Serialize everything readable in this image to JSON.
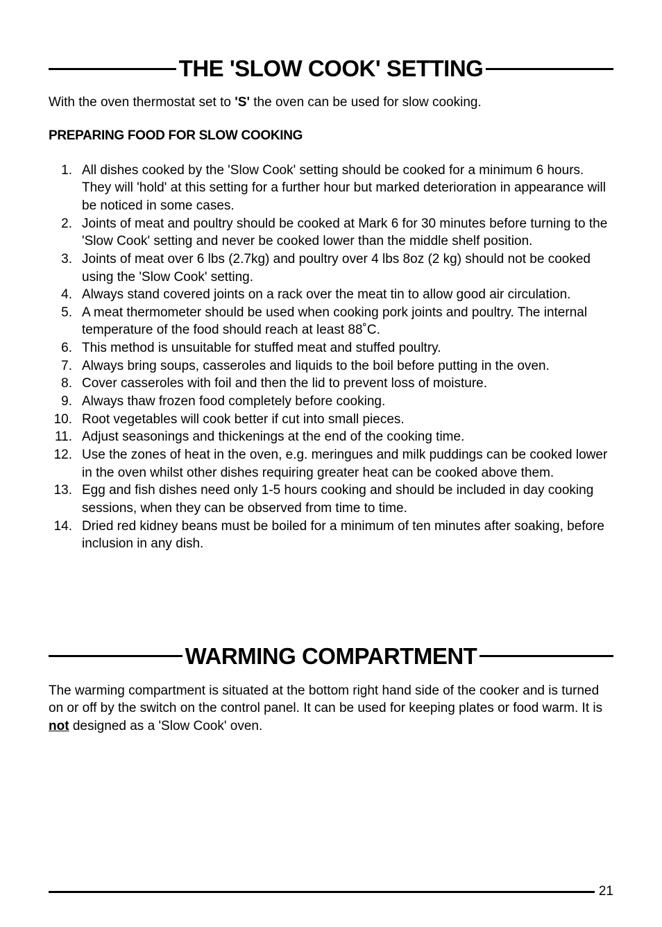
{
  "section1": {
    "heading": "THE 'SLOW COOK' SETTING",
    "intro_pre": "With the oven thermostat set to ",
    "intro_bold": "'S'",
    "intro_post": " the oven can be used for slow cooking.",
    "subtitle": "PREPARING FOOD FOR SLOW COOKING",
    "items": [
      "All dishes cooked by the 'Slow Cook' setting should be cooked for a minimum 6 hours. They will 'hold' at this setting for a further hour but marked deterioration in appearance will be noticed in some cases.",
      "Joints of meat and poultry should be cooked at Mark 6 for 30 minutes before turning to the 'Slow Cook' setting and never be cooked lower than the middle shelf position.",
      "Joints of meat over 6 lbs (2.7kg) and poultry over 4 lbs 8oz (2 kg) should not be cooked using the 'Slow Cook' setting.",
      "Always stand covered joints on a rack over the meat tin to allow good air circulation.",
      "A meat thermometer should be used when cooking pork joints and poultry. The internal temperature of the food should reach at least 88˚C.",
      "This method is unsuitable for stuffed meat and stuffed poultry.",
      "Always bring soups, casseroles and liquids to the boil before putting in the oven.",
      "Cover casseroles with foil and then the lid to prevent loss of moisture.",
      "Always thaw frozen food completely before cooking.",
      "Root vegetables will cook better if cut into small pieces.",
      "Adjust seasonings and thickenings at the end of the cooking time.",
      "Use the zones of heat in the oven, e.g. meringues and milk puddings can be cooked lower in the oven whilst other dishes requiring greater heat can be cooked above them.",
      "Egg and fish dishes need only 1-5 hours cooking and should be included in day cooking sessions, when they can be observed from time to time.",
      "Dried red kidney beans must be boiled for a minimum of ten minutes after soaking, before inclusion in any dish."
    ]
  },
  "section2": {
    "heading": "WARMING COMPARTMENT",
    "text_pre": "The warming compartment is situated at the bottom right hand side of the cooker and is turned on or off by the switch on the control panel.  It can be used for keeping plates or food warm.  It is ",
    "text_bold": "not",
    "text_post": " designed as a 'Slow Cook' oven."
  },
  "page_number": "21",
  "styles": {
    "heading_fontsize": 33,
    "body_fontsize": 19,
    "line_thickness": 3,
    "text_color": "#000000",
    "background_color": "#ffffff"
  }
}
